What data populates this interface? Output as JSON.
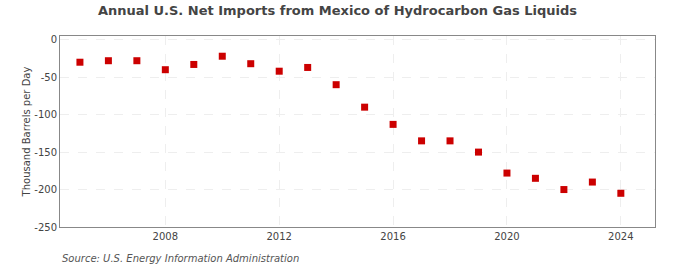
{
  "chart_data": {
    "type": "scatter",
    "title": "Annual U.S. Net Imports from Mexico of Hydrocarbon Gas Liquids",
    "ylabel": "Thousand Barrels per Day",
    "annotations": [
      "Source: U.S. Energy Information Administration"
    ],
    "x": [
      2005,
      2006,
      2007,
      2008,
      2009,
      2010,
      2011,
      2012,
      2013,
      2014,
      2015,
      2016,
      2017,
      2018,
      2019,
      2020,
      2021,
      2022,
      2023,
      2024
    ],
    "values": [
      -30,
      -28,
      -28,
      -40,
      -33,
      -22,
      -32,
      -42,
      -37,
      -60,
      -90,
      -113,
      -135,
      -135,
      -150,
      -178,
      -185,
      -200,
      -190,
      -205
    ],
    "color": "#cc0000",
    "marker": "square",
    "xlim": [
      2004.3,
      2025.2
    ],
    "xticks": [
      2008,
      2012,
      2016,
      2020,
      2024
    ],
    "ylim": [
      -250,
      5
    ],
    "yticks": [
      0,
      -50,
      -100,
      -150,
      -200,
      -250
    ],
    "grid": true
  }
}
